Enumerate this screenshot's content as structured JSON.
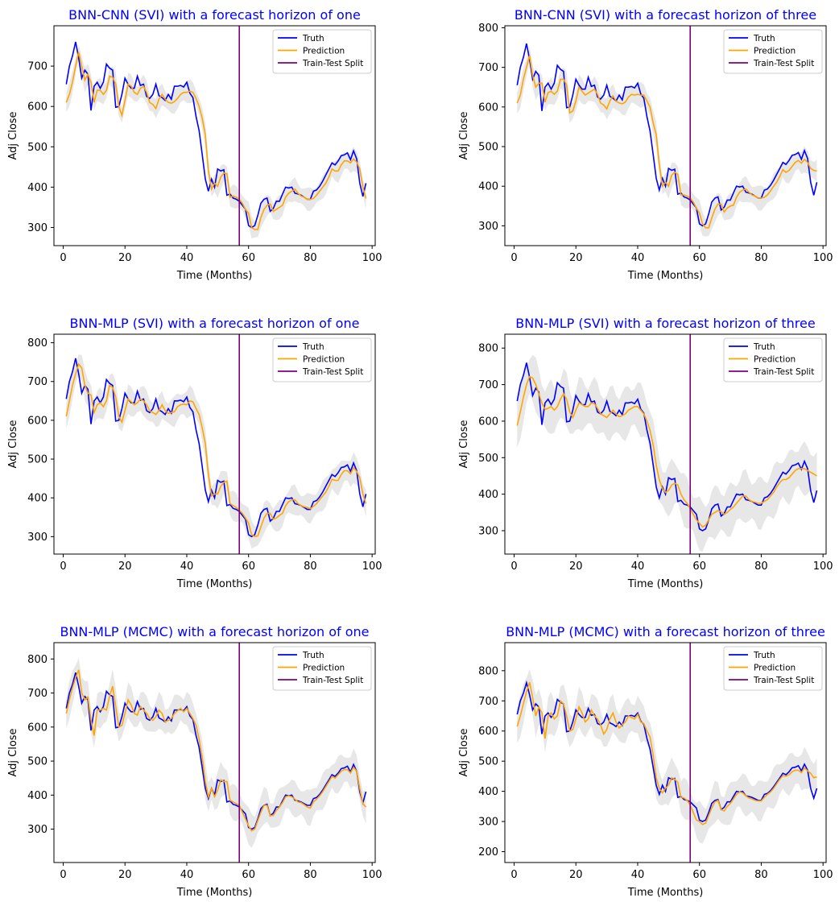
{
  "colors": {
    "truth": "#0000ff",
    "prediction": "#ffa500",
    "split": "#800080",
    "band": "#d3d3d3",
    "title": "#0000ff"
  },
  "legend": [
    "Truth",
    "Prediction",
    "Train-Test Split"
  ],
  "chart_data": [
    {
      "type": "line",
      "title": "BNN-CNN (SVI) with a forecast horizon of one",
      "xlabel": "Time (Months)",
      "ylabel": "Adj Close",
      "xlim": [
        -3,
        101
      ],
      "ylim": [
        255,
        800
      ],
      "xticks": [
        0,
        20,
        40,
        60,
        80,
        100
      ],
      "yticks": [
        300,
        400,
        500,
        600,
        700
      ],
      "split_x": 57,
      "legend_loc": "upper right",
      "band_width": 30,
      "truth": [
        655,
        700,
        725,
        760,
        720,
        670,
        690,
        680,
        590,
        650,
        660,
        645,
        660,
        705,
        695,
        690,
        598,
        600,
        630,
        670,
        655,
        645,
        645,
        675,
        652,
        655,
        625,
        620,
        630,
        655,
        627,
        622,
        615,
        630,
        618,
        650,
        650,
        652,
        648,
        660,
        633,
        622,
        575,
        540,
        480,
        420,
        390,
        420,
        400,
        445,
        440,
        443,
        380,
        383,
        373,
        370,
        365,
        355,
        345,
        305,
        300,
        305,
        330,
        360,
        370,
        373,
        340,
        347,
        365,
        365,
        383,
        400,
        398,
        400,
        385,
        383,
        380,
        375,
        370,
        370,
        390,
        393,
        402,
        415,
        430,
        445,
        460,
        455,
        465,
        478,
        480,
        485,
        468,
        490,
        470,
        410,
        377,
        410
      ],
      "prediction": [
        610,
        630,
        660,
        700,
        735,
        700,
        665,
        680,
        660,
        610,
        640,
        640,
        630,
        640,
        675,
        672,
        656,
        600,
        578,
        615,
        655,
        650,
        635,
        630,
        645,
        650,
        635,
        610,
        605,
        595,
        618,
        630,
        618,
        610,
        608,
        612,
        620,
        630,
        635,
        635,
        638,
        635,
        620,
        600,
        570,
        530,
        440,
        395,
        410,
        402,
        425,
        435,
        433,
        375,
        378,
        375,
        370,
        360,
        345,
        335,
        300,
        295,
        295,
        325,
        345,
        355,
        358,
        340,
        345,
        350,
        355,
        375,
        385,
        390,
        395,
        385,
        378,
        375,
        370,
        370,
        372,
        380,
        390,
        400,
        410,
        425,
        445,
        440,
        440,
        455,
        465,
        465,
        460,
        470,
        462,
        445,
        400,
        372
      ]
    },
    {
      "type": "line",
      "title": "BNN-CNN (SVI) with a forecast horizon of three",
      "xlabel": "Time (Months)",
      "ylabel": "Adj Close",
      "xlim": [
        -3,
        101
      ],
      "ylim": [
        250,
        805
      ],
      "xticks": [
        0,
        20,
        40,
        60,
        80,
        100
      ],
      "yticks": [
        300,
        400,
        500,
        600,
        700,
        800
      ],
      "split_x": 57,
      "legend_loc": "upper right",
      "band_width": 33,
      "truth": [
        655,
        700,
        725,
        760,
        720,
        670,
        690,
        680,
        590,
        650,
        660,
        645,
        660,
        705,
        695,
        690,
        598,
        600,
        630,
        670,
        655,
        645,
        645,
        675,
        652,
        655,
        625,
        620,
        630,
        655,
        627,
        622,
        615,
        630,
        618,
        650,
        650,
        652,
        648,
        660,
        633,
        622,
        575,
        540,
        480,
        420,
        390,
        420,
        400,
        445,
        440,
        443,
        380,
        383,
        373,
        370,
        365,
        355,
        345,
        305,
        300,
        305,
        330,
        360,
        370,
        373,
        340,
        347,
        365,
        365,
        383,
        400,
        398,
        400,
        385,
        383,
        380,
        375,
        370,
        370,
        390,
        393,
        402,
        415,
        430,
        445,
        460,
        455,
        465,
        478,
        480,
        485,
        468,
        490,
        470,
        410,
        377,
        410
      ],
      "prediction": [
        610,
        630,
        670,
        700,
        730,
        680,
        650,
        660,
        660,
        612,
        636,
        640,
        632,
        640,
        670,
        670,
        656,
        585,
        590,
        615,
        650,
        640,
        630,
        635,
        640,
        645,
        632,
        610,
        605,
        595,
        615,
        628,
        615,
        610,
        608,
        612,
        625,
        632,
        630,
        632,
        630,
        630,
        615,
        600,
        560,
        530,
        455,
        400,
        410,
        400,
        428,
        435,
        430,
        378,
        378,
        375,
        370,
        360,
        345,
        332,
        305,
        295,
        295,
        320,
        342,
        355,
        355,
        335,
        345,
        350,
        352,
        372,
        385,
        390,
        393,
        385,
        378,
        375,
        370,
        370,
        372,
        378,
        388,
        400,
        410,
        425,
        442,
        435,
        440,
        450,
        460,
        465,
        458,
        468,
        460,
        445,
        440,
        438
      ]
    },
    {
      "type": "line",
      "title": "BNN-MLP (SVI) with a forecast horizon of one",
      "xlabel": "Time (Months)",
      "ylabel": "Adj Close",
      "xlim": [
        -3,
        101
      ],
      "ylim": [
        255,
        822
      ],
      "xticks": [
        0,
        20,
        40,
        60,
        80,
        100
      ],
      "yticks": [
        300,
        400,
        500,
        600,
        700,
        800
      ],
      "split_x": 57,
      "legend_loc": "upper right",
      "band_width": 40,
      "truth": [
        655,
        700,
        725,
        760,
        720,
        670,
        690,
        680,
        590,
        650,
        660,
        645,
        660,
        705,
        695,
        690,
        598,
        600,
        630,
        670,
        655,
        645,
        645,
        675,
        652,
        655,
        625,
        620,
        630,
        655,
        627,
        622,
        615,
        630,
        618,
        650,
        650,
        652,
        648,
        660,
        633,
        622,
        575,
        540,
        480,
        420,
        390,
        420,
        400,
        445,
        440,
        443,
        380,
        383,
        373,
        370,
        365,
        355,
        345,
        305,
        300,
        305,
        330,
        360,
        370,
        373,
        340,
        347,
        365,
        365,
        383,
        400,
        398,
        400,
        385,
        383,
        380,
        375,
        370,
        370,
        390,
        393,
        402,
        415,
        430,
        445,
        460,
        455,
        465,
        478,
        480,
        485,
        468,
        490,
        470,
        410,
        377,
        410
      ],
      "prediction": [
        610,
        650,
        690,
        720,
        745,
        735,
        690,
        670,
        665,
        620,
        640,
        645,
        635,
        650,
        690,
        685,
        660,
        610,
        595,
        625,
        655,
        648,
        640,
        645,
        655,
        650,
        640,
        625,
        620,
        615,
        625,
        640,
        625,
        618,
        620,
        622,
        635,
        640,
        642,
        640,
        650,
        648,
        630,
        615,
        580,
        540,
        460,
        405,
        410,
        410,
        430,
        440,
        443,
        385,
        380,
        375,
        368,
        360,
        348,
        335,
        305,
        300,
        302,
        325,
        348,
        360,
        360,
        345,
        348,
        355,
        360,
        380,
        390,
        395,
        395,
        385,
        380,
        377,
        375,
        372,
        378,
        385,
        395,
        405,
        415,
        430,
        448,
        445,
        445,
        460,
        470,
        470,
        462,
        478,
        468,
        452,
        410,
        385
      ]
    },
    {
      "type": "line",
      "title": "BNN-MLP (SVI) with a forecast horizon of three",
      "xlabel": "Time (Months)",
      "ylabel": "Adj Close",
      "xlim": [
        -3,
        101
      ],
      "ylim": [
        236,
        838
      ],
      "xticks": [
        0,
        20,
        40,
        60,
        80,
        100
      ],
      "yticks": [
        300,
        400,
        500,
        600,
        700,
        800
      ],
      "split_x": 57,
      "legend_loc": "upper right",
      "band_width": 75,
      "truth": [
        655,
        700,
        725,
        760,
        720,
        670,
        690,
        680,
        590,
        650,
        660,
        645,
        660,
        705,
        695,
        690,
        598,
        600,
        630,
        670,
        655,
        645,
        645,
        675,
        652,
        655,
        625,
        620,
        630,
        655,
        627,
        622,
        615,
        630,
        618,
        650,
        650,
        652,
        648,
        660,
        633,
        622,
        575,
        540,
        480,
        420,
        390,
        420,
        400,
        445,
        440,
        443,
        380,
        383,
        373,
        370,
        365,
        355,
        345,
        305,
        300,
        305,
        330,
        360,
        370,
        373,
        340,
        347,
        365,
        365,
        383,
        400,
        398,
        400,
        385,
        383,
        380,
        375,
        370,
        370,
        390,
        393,
        402,
        415,
        430,
        445,
        460,
        455,
        465,
        478,
        480,
        485,
        468,
        490,
        470,
        410,
        377,
        410
      ],
      "prediction": [
        588,
        625,
        665,
        700,
        722,
        718,
        700,
        675,
        650,
        632,
        635,
        640,
        630,
        640,
        660,
        675,
        660,
        625,
        610,
        630,
        650,
        645,
        640,
        640,
        650,
        648,
        635,
        620,
        615,
        610,
        620,
        630,
        620,
        612,
        615,
        620,
        630,
        635,
        640,
        640,
        630,
        620,
        600,
        575,
        535,
        480,
        440,
        415,
        405,
        410,
        425,
        430,
        425,
        400,
        385,
        375,
        360,
        345,
        330,
        320,
        310,
        315,
        330,
        345,
        350,
        355,
        352,
        345,
        350,
        358,
        365,
        375,
        385,
        395,
        395,
        385,
        380,
        378,
        375,
        375,
        380,
        385,
        395,
        405,
        420,
        432,
        440,
        440,
        445,
        455,
        465,
        470,
        470,
        470,
        465,
        460,
        455,
        450
      ]
    },
    {
      "type": "line",
      "title": "BNN-MLP (MCMC) with a forecast horizon of one",
      "xlabel": "Time (Months)",
      "ylabel": "Adj Close",
      "xlim": [
        -3,
        101
      ],
      "ylim": [
        202,
        848
      ],
      "xticks": [
        0,
        20,
        40,
        60,
        80,
        100
      ],
      "yticks": [
        300,
        400,
        500,
        600,
        700,
        800
      ],
      "split_x": 57,
      "legend_loc": "upper right",
      "band_width": 55,
      "truth": [
        655,
        700,
        725,
        760,
        720,
        670,
        690,
        680,
        590,
        650,
        660,
        645,
        660,
        705,
        695,
        690,
        598,
        600,
        630,
        670,
        655,
        645,
        645,
        675,
        652,
        655,
        625,
        620,
        630,
        655,
        627,
        622,
        615,
        630,
        618,
        650,
        650,
        652,
        648,
        660,
        633,
        622,
        575,
        540,
        480,
        420,
        390,
        420,
        400,
        445,
        440,
        443,
        380,
        383,
        373,
        370,
        365,
        355,
        345,
        305,
        300,
        305,
        330,
        360,
        370,
        373,
        340,
        347,
        365,
        365,
        383,
        400,
        398,
        400,
        385,
        383,
        380,
        375,
        370,
        370,
        390,
        393,
        402,
        415,
        430,
        445,
        460,
        455,
        465,
        478,
        480,
        485,
        468,
        490,
        470,
        410,
        377,
        410
      ],
      "prediction": [
        640,
        680,
        715,
        745,
        768,
        700,
        680,
        688,
        620,
        575,
        650,
        650,
        655,
        650,
        690,
        720,
        660,
        600,
        605,
        640,
        680,
        665,
        640,
        635,
        660,
        650,
        640,
        625,
        620,
        630,
        650,
        640,
        615,
        620,
        625,
        640,
        648,
        655,
        645,
        655,
        640,
        625,
        605,
        565,
        510,
        440,
        395,
        420,
        395,
        415,
        445,
        440,
        440,
        385,
        380,
        375,
        370,
        350,
        330,
        310,
        295,
        300,
        325,
        350,
        370,
        370,
        340,
        340,
        355,
        365,
        378,
        395,
        398,
        395,
        388,
        380,
        378,
        372,
        365,
        362,
        380,
        388,
        398,
        410,
        425,
        440,
        455,
        450,
        460,
        470,
        475,
        475,
        465,
        482,
        470,
        420,
        375,
        365
      ]
    },
    {
      "type": "line",
      "title": "BNN-MLP (MCMC) with a forecast horizon of three",
      "xlabel": "Time (Months)",
      "ylabel": "Adj Close",
      "xlim": [
        -3,
        101
      ],
      "ylim": [
        164,
        893
      ],
      "xticks": [
        0,
        20,
        40,
        60,
        80,
        100
      ],
      "yticks": [
        200,
        300,
        400,
        500,
        600,
        700,
        800
      ],
      "split_x": 57,
      "legend_loc": "upper right",
      "band_width": 70,
      "truth": [
        655,
        700,
        725,
        760,
        720,
        670,
        690,
        680,
        590,
        650,
        660,
        645,
        660,
        705,
        695,
        690,
        598,
        600,
        630,
        670,
        655,
        645,
        645,
        675,
        652,
        655,
        625,
        620,
        630,
        655,
        627,
        622,
        615,
        630,
        618,
        650,
        650,
        652,
        648,
        660,
        633,
        622,
        575,
        540,
        480,
        420,
        390,
        420,
        400,
        445,
        440,
        443,
        380,
        383,
        373,
        370,
        365,
        355,
        345,
        305,
        300,
        305,
        330,
        360,
        370,
        373,
        340,
        347,
        365,
        365,
        383,
        400,
        398,
        400,
        385,
        383,
        380,
        375,
        370,
        370,
        390,
        393,
        402,
        415,
        430,
        445,
        460,
        455,
        465,
        478,
        480,
        485,
        468,
        490,
        470,
        410,
        377,
        410
      ],
      "prediction": [
        615,
        650,
        690,
        730,
        762,
        710,
        650,
        680,
        660,
        575,
        650,
        660,
        640,
        650,
        700,
        690,
        650,
        600,
        605,
        640,
        680,
        660,
        630,
        640,
        670,
        650,
        640,
        620,
        590,
        605,
        640,
        660,
        630,
        610,
        620,
        630,
        650,
        645,
        640,
        655,
        630,
        625,
        600,
        580,
        520,
        445,
        410,
        395,
        410,
        420,
        445,
        440,
        430,
        380,
        378,
        370,
        355,
        330,
        305,
        300,
        290,
        295,
        320,
        345,
        365,
        370,
        340,
        335,
        350,
        360,
        375,
        390,
        398,
        395,
        385,
        378,
        375,
        370,
        368,
        368,
        380,
        390,
        398,
        410,
        425,
        440,
        452,
        450,
        455,
        465,
        470,
        470,
        462,
        478,
        468,
        460,
        445,
        448
      ]
    }
  ]
}
